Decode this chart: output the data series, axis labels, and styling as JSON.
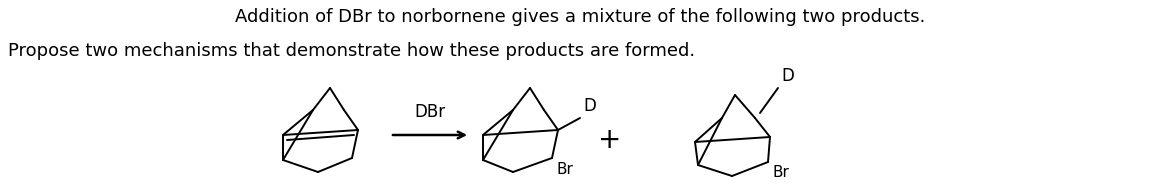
{
  "title_line1": "Addition of DBr to norbornene gives a mixture of the following two products.",
  "title_line2": "Propose two mechanisms that demonstrate how these products are formed.",
  "bg_color": "#ffffff",
  "text_color": "#000000",
  "title_fontsize": 13.0,
  "fig_width": 11.6,
  "fig_height": 1.92,
  "dpi": 100
}
